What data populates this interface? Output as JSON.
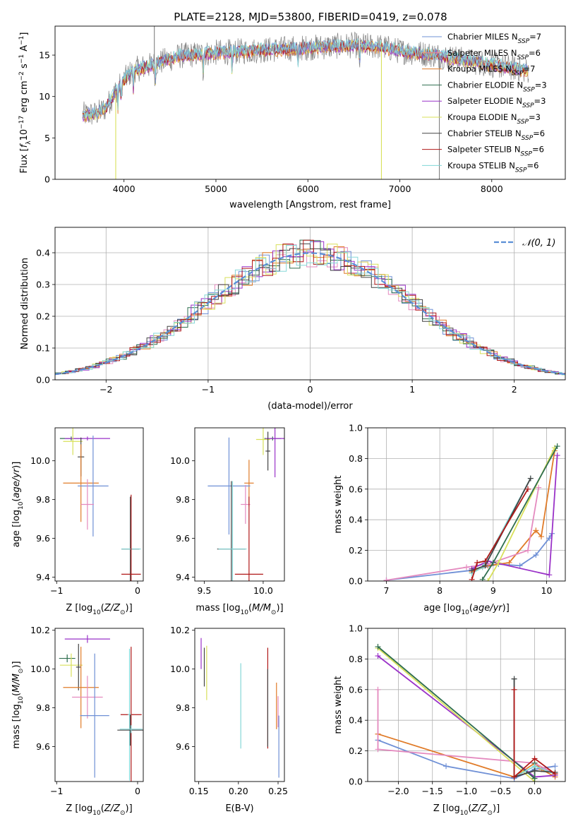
{
  "figure_title": "PLATE=2128, MJD=53800, FIBERID=0419, z=0.078",
  "colors": {
    "Chabrier MILES": "#6f90d6",
    "Salpeter MILES": "#f08a8a",
    "Kroupa MILES": "#e07b28",
    "Chabrier ELODIE": "#2f6e4f",
    "Salpeter ELODIE": "#9a32c8",
    "Kroupa ELODIE": "#d8e05a",
    "Chabrier STELIB": "#444444",
    "Salpeter STELIB": "#b01818",
    "Kroupa STELIB": "#7fd6d6",
    "data": "#808080",
    "pink": "#e48abf",
    "teal": "#86d8d8",
    "norm": "#5b8fd6"
  },
  "chart_data": [
    {
      "id": "spectrum",
      "type": "line",
      "title": "PLATE=2128, MJD=53800, FIBERID=0419, z=0.078",
      "xlabel": "wavelength [Angstrom, rest frame]",
      "ylabel": "Flux [f_λ 10^-17 erg cm^-2 s^-1 A^-1]",
      "xlim": [
        3250,
        8800
      ],
      "ylim": [
        0,
        18.5
      ],
      "xticks": [
        4000,
        5000,
        6000,
        7000,
        8000
      ],
      "yticks": [
        0,
        5,
        10,
        15
      ],
      "legend_position": "right",
      "series": [
        {
          "name": "Chabrier MILES",
          "nssp": "7"
        },
        {
          "name": "Salpeter MILES",
          "nssp": "6"
        },
        {
          "name": "Kroupa MILES",
          "nssp": "7"
        },
        {
          "name": "Chabrier ELODIE",
          "nssp": "3"
        },
        {
          "name": "Salpeter ELODIE",
          "nssp": "3"
        },
        {
          "name": "Kroupa ELODIE",
          "nssp": "3"
        },
        {
          "name": "Chabrier STELIB",
          "nssp": "6"
        },
        {
          "name": "Salpeter STELIB",
          "nssp": "6"
        },
        {
          "name": "Kroupa STELIB",
          "nssp": "6"
        }
      ],
      "continuum": [
        [
          3550,
          7.8
        ],
        [
          3700,
          7.9
        ],
        [
          3800,
          8.6
        ],
        [
          3900,
          10.5
        ],
        [
          4000,
          12.0
        ],
        [
          4100,
          13.2
        ],
        [
          4300,
          13.8
        ],
        [
          4600,
          14.9
        ],
        [
          5000,
          15.3
        ],
        [
          5500,
          15.6
        ],
        [
          6000,
          15.9
        ],
        [
          6500,
          16.2
        ],
        [
          6800,
          16.0
        ],
        [
          7000,
          15.5
        ],
        [
          7400,
          15.0
        ],
        [
          7800,
          14.2
        ],
        [
          8200,
          13.5
        ],
        [
          8400,
          13.1
        ]
      ]
    },
    {
      "id": "residuals",
      "type": "line",
      "xlabel": "(data-model)/error",
      "ylabel": "Normed distribution",
      "xlim": [
        -2.5,
        2.5
      ],
      "ylim": [
        0,
        0.48
      ],
      "xticks": [
        -2,
        -1,
        0,
        1,
        2
      ],
      "yticks": [
        0.0,
        0.1,
        0.2,
        0.3,
        0.4
      ],
      "grid": true,
      "legend": "𝒩(0, 1)",
      "legend_position": "top-right"
    },
    {
      "id": "age_vs_Z",
      "type": "scatter",
      "xlabel": "Z [log10(Z/Z☉)]",
      "ylabel": "age [log10(age/yr)]",
      "xlim": [
        -1.02,
        0.07
      ],
      "ylim": [
        9.38,
        10.17
      ],
      "xticks": [
        -1,
        0
      ],
      "yticks": [
        9.4,
        9.6,
        9.8,
        10.0
      ],
      "points": [
        {
          "x": -0.82,
          "y": 10.115,
          "xerr": 0.14,
          "yerr": 0.01,
          "color": "#2f6e4f"
        },
        {
          "x": -0.62,
          "y": 10.115,
          "xerr": 0.28,
          "yerr": 0.01,
          "color": "#9a32c8"
        },
        {
          "x": -0.8,
          "y": 10.1,
          "xerr": 0.12,
          "yerr": 0.07,
          "color": "#d8e05a"
        },
        {
          "x": -0.7,
          "y": 10.02,
          "xerr": 0.04,
          "yerr": 0.1,
          "color": "#444444"
        },
        {
          "x": -0.7,
          "y": 9.885,
          "xerr": 0.22,
          "yerr": 0.2,
          "color": "#e07b28"
        },
        {
          "x": -0.55,
          "y": 9.87,
          "xerr": 0.19,
          "yerr": 0.26,
          "color": "#6f90d6"
        },
        {
          "x": -0.62,
          "y": 9.775,
          "xerr": 0.08,
          "yerr": 0.13,
          "color": "#e48abf"
        },
        {
          "x": -0.09,
          "y": 9.545,
          "xerr": 0.11,
          "yerr": 0.27,
          "color": "#444444"
        },
        {
          "x": -0.08,
          "y": 9.545,
          "xerr": 0.12,
          "yerr": 0.27,
          "color": "#86d8d8"
        },
        {
          "x": -0.08,
          "y": 9.415,
          "xerr": 0.12,
          "yerr": 0.41,
          "color": "#b01818"
        }
      ]
    },
    {
      "id": "age_vs_mass",
      "type": "scatter",
      "xlabel": "mass [log10(M/M☉)]",
      "ylabel": "",
      "xlim": [
        9.42,
        10.18
      ],
      "ylim": [
        9.38,
        10.17
      ],
      "xticks": [
        9.5,
        10.0
      ],
      "yticks": [
        9.4,
        9.6,
        9.8,
        10.0
      ],
      "points": [
        {
          "x": 10.08,
          "y": 10.115,
          "xerr": 0.07,
          "yerr": 0.01,
          "color": "#2f6e4f"
        },
        {
          "x": 10.1,
          "y": 10.115,
          "xerr": 0.08,
          "yerr": 0.2,
          "color": "#9a32c8"
        },
        {
          "x": 10.0,
          "y": 10.11,
          "xerr": 0.06,
          "yerr": 0.08,
          "color": "#d8e05a"
        },
        {
          "x": 10.04,
          "y": 10.05,
          "xerr": 0.02,
          "yerr": 0.1,
          "color": "#444444"
        },
        {
          "x": 9.88,
          "y": 9.885,
          "xerr": 0.04,
          "yerr": 0.12,
          "color": "#e07b28"
        },
        {
          "x": 9.71,
          "y": 9.87,
          "xerr": 0.18,
          "yerr": 0.25,
          "color": "#6f90d6"
        },
        {
          "x": 9.85,
          "y": 9.775,
          "xerr": 0.04,
          "yerr": 0.1,
          "color": "#e48abf"
        },
        {
          "x": 9.73,
          "y": 9.545,
          "xerr": 0.12,
          "yerr": 0.35,
          "color": "#444444"
        },
        {
          "x": 9.74,
          "y": 9.545,
          "xerr": 0.12,
          "yerr": 0.35,
          "color": "#86d8d8"
        },
        {
          "x": 9.88,
          "y": 9.415,
          "xerr": 0.12,
          "yerr": 0.4,
          "color": "#b01818"
        }
      ]
    },
    {
      "id": "mass_weight_vs_age",
      "type": "line",
      "xlabel": "age [log10(age/yr)]",
      "ylabel": "mass weight",
      "xlim": [
        6.65,
        10.35
      ],
      "ylim": [
        0,
        1.0
      ],
      "xticks": [
        7,
        8,
        9,
        10
      ],
      "yticks": [
        0.0,
        0.2,
        0.4,
        0.6,
        0.8,
        1.0
      ],
      "grid": true,
      "series": [
        {
          "color": "#6f90d6",
          "points": [
            [
              7.0,
              0.005
            ],
            [
              8.6,
              0.07
            ],
            [
              9.1,
              0.11
            ],
            [
              9.5,
              0.1
            ],
            [
              9.8,
              0.17
            ],
            [
              10.05,
              0.28
            ],
            [
              10.1,
              0.31
            ]
          ]
        },
        {
          "color": "#e07b28",
          "points": [
            [
              8.6,
              0.06
            ],
            [
              8.9,
              0.1
            ],
            [
              9.3,
              0.12
            ],
            [
              9.8,
              0.33
            ],
            [
              9.9,
              0.29
            ],
            [
              10.15,
              0.85
            ]
          ]
        },
        {
          "color": "#e48abf",
          "points": [
            [
              7.0,
              0.005
            ],
            [
              8.5,
              0.09
            ],
            [
              8.9,
              0.11
            ],
            [
              9.65,
              0.2
            ],
            [
              9.85,
              0.61
            ]
          ]
        },
        {
          "color": "#9a32c8",
          "points": [
            [
              8.6,
              0.08
            ],
            [
              8.9,
              0.13
            ],
            [
              10.05,
              0.04
            ],
            [
              10.2,
              0.82
            ]
          ]
        },
        {
          "color": "#d8e05a",
          "points": [
            [
              8.9,
              0.0
            ],
            [
              9.1,
              0.12
            ],
            [
              10.15,
              0.87
            ]
          ]
        },
        {
          "color": "#2f6e4f",
          "points": [
            [
              8.8,
              0.01
            ],
            [
              9.0,
              0.12
            ],
            [
              10.2,
              0.88
            ]
          ]
        },
        {
          "color": "#86d8d8",
          "points": [
            [
              8.6,
              0.05
            ],
            [
              8.8,
              0.09
            ],
            [
              9.7,
              0.67
            ]
          ]
        },
        {
          "color": "#444444",
          "points": [
            [
              8.6,
              0.07
            ],
            [
              8.85,
              0.1
            ],
            [
              9.7,
              0.67
            ]
          ]
        },
        {
          "color": "#b01818",
          "points": [
            [
              8.6,
              0.01
            ],
            [
              8.7,
              0.12
            ],
            [
              8.85,
              0.13
            ],
            [
              9.65,
              0.6
            ]
          ]
        }
      ]
    },
    {
      "id": "mass_vs_Z",
      "type": "scatter",
      "xlabel": "Z [log10(Z/Z☉)]",
      "ylabel": "mass [log10(M/M☉)]",
      "xlim": [
        -1.02,
        0.07
      ],
      "ylim": [
        9.42,
        10.21
      ],
      "xticks": [
        -1,
        0
      ],
      "yticks": [
        9.6,
        9.8,
        10.0,
        10.2
      ],
      "points": [
        {
          "x": -0.87,
          "y": 10.055,
          "xerr": 0.1,
          "yerr": 0.02,
          "color": "#2f6e4f"
        },
        {
          "x": -0.62,
          "y": 10.155,
          "xerr": 0.28,
          "yerr": 0.02,
          "color": "#9a32c8"
        },
        {
          "x": -0.82,
          "y": 10.02,
          "xerr": 0.14,
          "yerr": 0.06,
          "color": "#d8e05a"
        },
        {
          "x": -0.73,
          "y": 10.01,
          "xerr": 0.03,
          "yerr": 0.12,
          "color": "#444444"
        },
        {
          "x": -0.7,
          "y": 9.905,
          "xerr": 0.22,
          "yerr": 0.21,
          "color": "#e07b28"
        },
        {
          "x": -0.62,
          "y": 9.855,
          "xerr": 0.19,
          "yerr": 0.11,
          "color": "#e48abf"
        },
        {
          "x": -0.53,
          "y": 9.76,
          "xerr": 0.18,
          "yerr": 0.32,
          "color": "#6f90d6"
        },
        {
          "x": -0.08,
          "y": 9.765,
          "xerr": 0.13,
          "yerr": 0.35,
          "color": "#b01818"
        },
        {
          "x": -0.1,
          "y": 9.765,
          "xerr": 0.02,
          "yerr": 0.34,
          "color": "#86d8d8"
        },
        {
          "x": -0.09,
          "y": 9.685,
          "xerr": 0.16,
          "yerr": 0.08,
          "color": "#444444"
        },
        {
          "x": -0.08,
          "y": 9.69,
          "xerr": 0.14,
          "yerr": 0.02,
          "color": "#86d8d8"
        }
      ]
    },
    {
      "id": "mass_vs_ebv",
      "type": "scatter",
      "xlabel": "E(B-V)",
      "ylabel": "",
      "xlim": [
        0.145,
        0.258
      ],
      "ylim": [
        9.42,
        10.21
      ],
      "xticks": [
        0.15,
        0.2,
        0.25
      ],
      "yticks": [
        9.6,
        9.8,
        10.0,
        10.2
      ],
      "points": [
        {
          "x": 0.153,
          "y": 10.08,
          "xerr": 0,
          "yerr": 0.08,
          "color": "#9a32c8"
        },
        {
          "x": 0.157,
          "y": 10.01,
          "xerr": 0,
          "yerr": 0.1,
          "color": "#444444"
        },
        {
          "x": 0.16,
          "y": 9.98,
          "xerr": 0,
          "yerr": 0.14,
          "color": "#d8e05a"
        },
        {
          "x": 0.203,
          "y": 9.81,
          "xerr": 0,
          "yerr": 0.22,
          "color": "#86d8d8"
        },
        {
          "x": 0.237,
          "y": 9.85,
          "xerr": 0,
          "yerr": 0.26,
          "color": "#b01818"
        },
        {
          "x": 0.237,
          "y": 9.8,
          "xerr": 0,
          "yerr": 0.2,
          "color": "#444444"
        },
        {
          "x": 0.248,
          "y": 9.81,
          "xerr": 0,
          "yerr": 0.12,
          "color": "#e07b28"
        },
        {
          "x": 0.25,
          "y": 9.78,
          "xerr": 0,
          "yerr": 0.08,
          "color": "#e48abf"
        },
        {
          "x": 0.251,
          "y": 9.6,
          "xerr": 0,
          "yerr": 0.16,
          "color": "#6f90d6"
        }
      ]
    },
    {
      "id": "mass_weight_vs_Z",
      "type": "line",
      "xlabel": "Z [log10(Z/Z☉)]",
      "ylabel": "mass weight",
      "xlim": [
        -2.45,
        0.45
      ],
      "ylim": [
        0,
        1.0
      ],
      "xticks": [
        -2.0,
        -1.5,
        -1.0,
        -0.5,
        0.0
      ],
      "yticks": [
        0.0,
        0.2,
        0.4,
        0.6,
        0.8,
        1.0
      ],
      "grid": true,
      "series": [
        {
          "color": "#6f90d6",
          "points": [
            [
              -2.3,
              0.27
            ],
            [
              -1.3,
              0.1
            ],
            [
              -0.3,
              0.02
            ],
            [
              0.0,
              0.08
            ],
            [
              0.3,
              0.1
            ]
          ]
        },
        {
          "color": "#e07b28",
          "points": [
            [
              -2.3,
              0.31
            ],
            [
              -0.3,
              0.03
            ],
            [
              0.0,
              0.12
            ],
            [
              0.1,
              0.08
            ],
            [
              0.3,
              0.03
            ]
          ]
        },
        {
          "color": "#e48abf",
          "points": [
            [
              -2.3,
              0.6
            ],
            [
              -2.3,
              0.21
            ],
            [
              0.0,
              0.12
            ],
            [
              0.3,
              0.05
            ]
          ]
        },
        {
          "color": "#9a32c8",
          "points": [
            [
              -2.3,
              0.82
            ],
            [
              0.0,
              0.03
            ],
            [
              0.3,
              0.04
            ]
          ]
        },
        {
          "color": "#d8e05a",
          "points": [
            [
              -2.3,
              0.87
            ],
            [
              0.0,
              0.0
            ],
            [
              0.0,
              0.12
            ]
          ]
        },
        {
          "color": "#2f6e4f",
          "points": [
            [
              -2.3,
              0.88
            ],
            [
              0.0,
              0.02
            ],
            [
              0.0,
              0.12
            ]
          ]
        },
        {
          "color": "#86d8d8",
          "points": [
            [
              -0.3,
              0.67
            ],
            [
              -0.3,
              0.03
            ],
            [
              0.0,
              0.1
            ],
            [
              0.3,
              0.05
            ]
          ]
        },
        {
          "color": "#444444",
          "points": [
            [
              -0.3,
              0.67
            ],
            [
              -0.3,
              0.03
            ],
            [
              0.0,
              0.07
            ],
            [
              0.3,
              0.06
            ]
          ]
        },
        {
          "color": "#b01818",
          "points": [
            [
              -0.3,
              0.6
            ],
            [
              -0.3,
              0.03
            ],
            [
              0.0,
              0.15
            ],
            [
              0.3,
              0.05
            ]
          ]
        }
      ]
    }
  ]
}
